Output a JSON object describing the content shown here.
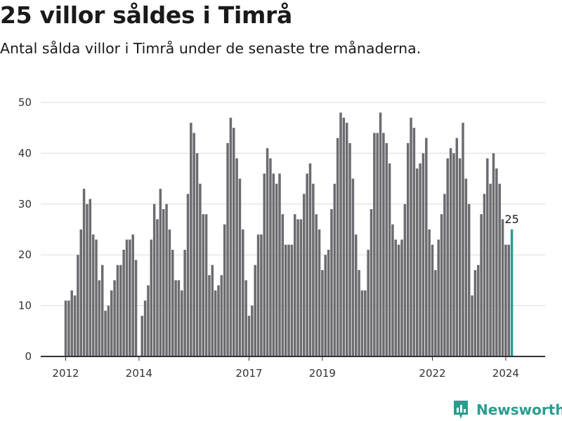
{
  "header": {
    "title": "25 villor såldes i Timrå",
    "subtitle": "Antal sålda villor i Timrå under de senaste tre månaderna."
  },
  "brand": {
    "name": "Newsworthy",
    "icon": "newsworthy-logo-icon",
    "color": "#2a9d8f"
  },
  "colors": {
    "bar": "#6b6b70",
    "highlight": "#2a9d8f"
  },
  "chart_data": {
    "type": "bar",
    "title": "25 villor såldes i Timrå",
    "subtitle": "Antal sålda villor i Timrå under de senaste tre månaderna.",
    "xlabel": "",
    "ylabel": "",
    "ylim": [
      0,
      50
    ],
    "yticks": [
      0,
      10,
      20,
      30,
      40,
      50
    ],
    "xtick_labels": [
      "2012",
      "2014",
      "2017",
      "2019",
      "2022",
      "2024"
    ],
    "x_start": "2012-01",
    "x_end": "2024-04",
    "grid": true,
    "legend": "none",
    "highlight_label": "25",
    "values": [
      11,
      11,
      13,
      12,
      20,
      25,
      33,
      30,
      31,
      24,
      23,
      15,
      18,
      9,
      10,
      13,
      15,
      18,
      18,
      21,
      23,
      23,
      24,
      19,
      0,
      8,
      11,
      14,
      23,
      30,
      27,
      33,
      29,
      30,
      25,
      21,
      15,
      15,
      13,
      21,
      32,
      46,
      44,
      40,
      34,
      28,
      28,
      16,
      18,
      13,
      14,
      16,
      26,
      42,
      47,
      45,
      39,
      35,
      25,
      15,
      8,
      10,
      18,
      24,
      24,
      36,
      41,
      39,
      36,
      34,
      36,
      28,
      22,
      22,
      22,
      28,
      27,
      27,
      32,
      36,
      38,
      34,
      28,
      25,
      17,
      20,
      21,
      29,
      34,
      43,
      48,
      47,
      46,
      42,
      35,
      24,
      17,
      13,
      13,
      21,
      29,
      44,
      44,
      48,
      44,
      42,
      38,
      26,
      23,
      22,
      23,
      30,
      42,
      47,
      45,
      37,
      38,
      40,
      43,
      25,
      22,
      17,
      23,
      28,
      32,
      39,
      41,
      40,
      43,
      39,
      46,
      35,
      30,
      12,
      17,
      18,
      28,
      32,
      39,
      34,
      40,
      37,
      34,
      27,
      22,
      22,
      25
    ]
  }
}
